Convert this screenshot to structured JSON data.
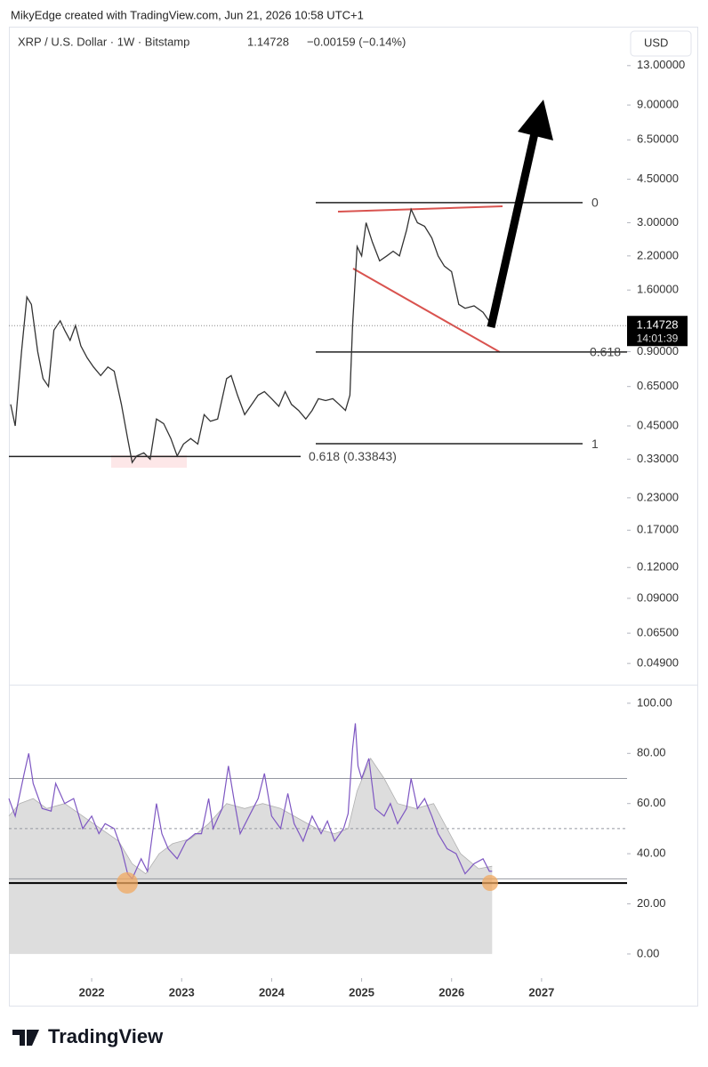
{
  "header": {
    "credit": "MikyEdge created with TradingView.com, Jun 21, 2026 10:58 UTC+1"
  },
  "footer": {
    "brand": "TradingView"
  },
  "chart_data": [
    {
      "type": "line",
      "title": "XRP / U.S. Dollar · 1W · Bitstamp",
      "last_price": 1.14728,
      "change": "−0.00159 (−0.14%)",
      "countdown": "14:01:39",
      "currency": "USD",
      "log_scale": true,
      "color": "#333333",
      "xlim": [
        2021.08,
        2027.95
      ],
      "ylim": [
        0.0402,
        18.7
      ],
      "yticks": [
        {
          "value": 13,
          "label": "13.00000"
        },
        {
          "value": 9,
          "label": "9.00000"
        },
        {
          "value": 6.5,
          "label": "6.50000"
        },
        {
          "value": 4.5,
          "label": "4.50000"
        },
        {
          "value": 3,
          "label": "3.00000"
        },
        {
          "value": 2.2,
          "label": "2.20000"
        },
        {
          "value": 1.6,
          "label": "1.60000"
        },
        {
          "value": 0.9,
          "label": "0.90000"
        },
        {
          "value": 0.65,
          "label": "0.65000"
        },
        {
          "value": 0.45,
          "label": "0.45000"
        },
        {
          "value": 0.33,
          "label": "0.33000"
        },
        {
          "value": 0.23,
          "label": "0.23000"
        },
        {
          "value": 0.17,
          "label": "0.17000"
        },
        {
          "value": 0.12,
          "label": "0.12000"
        },
        {
          "value": 0.09,
          "label": "0.09000"
        },
        {
          "value": 0.065,
          "label": "0.06500"
        },
        {
          "value": 0.049,
          "label": "0.04900"
        }
      ],
      "x": [
        2021.1,
        2021.15,
        2021.22,
        2021.28,
        2021.33,
        2021.4,
        2021.46,
        2021.52,
        2021.58,
        2021.65,
        2021.7,
        2021.76,
        2021.82,
        2021.88,
        2021.95,
        2022.02,
        2022.1,
        2022.18,
        2022.25,
        2022.33,
        2022.4,
        2022.45,
        2022.5,
        2022.58,
        2022.65,
        2022.72,
        2022.8,
        2022.88,
        2022.95,
        2023.02,
        2023.1,
        2023.18,
        2023.25,
        2023.32,
        2023.4,
        2023.5,
        2023.55,
        2023.62,
        2023.7,
        2023.78,
        2023.85,
        2023.92,
        2024.0,
        2024.08,
        2024.15,
        2024.22,
        2024.3,
        2024.38,
        2024.45,
        2024.52,
        2024.6,
        2024.68,
        2024.75,
        2024.82,
        2024.87,
        2024.9,
        2024.95,
        2025.0,
        2025.05,
        2025.12,
        2025.2,
        2025.28,
        2025.35,
        2025.42,
        2025.5,
        2025.55,
        2025.62,
        2025.7,
        2025.78,
        2025.85,
        2025.92,
        2026.0,
        2026.08,
        2026.15,
        2026.25,
        2026.35,
        2026.45
      ],
      "values": [
        0.55,
        0.45,
        0.9,
        1.5,
        1.4,
        0.9,
        0.7,
        0.65,
        1.1,
        1.2,
        1.1,
        1.0,
        1.15,
        0.95,
        0.85,
        0.78,
        0.72,
        0.78,
        0.75,
        0.55,
        0.4,
        0.32,
        0.34,
        0.35,
        0.33,
        0.48,
        0.46,
        0.4,
        0.34,
        0.38,
        0.4,
        0.38,
        0.5,
        0.47,
        0.48,
        0.7,
        0.72,
        0.6,
        0.5,
        0.55,
        0.6,
        0.62,
        0.58,
        0.54,
        0.62,
        0.55,
        0.52,
        0.48,
        0.52,
        0.58,
        0.57,
        0.58,
        0.55,
        0.52,
        0.6,
        1.15,
        2.4,
        2.2,
        3.0,
        2.5,
        2.1,
        2.2,
        2.3,
        2.2,
        2.8,
        3.4,
        3.0,
        2.9,
        2.6,
        2.2,
        2.0,
        1.9,
        1.4,
        1.35,
        1.38,
        1.3,
        1.15
      ],
      "levels": [
        {
          "value": 3.62,
          "label": "0"
        },
        {
          "value": 0.897,
          "label": "0.618"
        },
        {
          "value": 0.381,
          "label": "1"
        },
        {
          "value": 0.33843,
          "label": "0.618 (0.33843)"
        }
      ]
    },
    {
      "type": "line",
      "xlim": [
        2021.08,
        2027.95
      ],
      "ylim": [
        -9.6,
        106.7
      ],
      "xticks": [
        2022,
        2023,
        2024,
        2025,
        2026,
        2027
      ],
      "yticks": [
        {
          "value": 100,
          "label": "100.00"
        },
        {
          "value": 80,
          "label": "80.00"
        },
        {
          "value": 60,
          "label": "60.00"
        },
        {
          "value": 40,
          "label": "40.00"
        },
        {
          "value": 20,
          "label": "20.00"
        },
        {
          "value": 0,
          "label": "0.00"
        }
      ],
      "bands": [
        70,
        50,
        30
      ],
      "support_level": 28.3,
      "series": [
        {
          "color": "#d9d9d9",
          "x": [
            2021.08,
            2021.2,
            2021.35,
            2021.5,
            2021.7,
            2021.9,
            2022.1,
            2022.3,
            2022.45,
            2022.6,
            2022.75,
            2022.9,
            2023.1,
            2023.3,
            2023.5,
            2023.7,
            2023.9,
            2024.1,
            2024.3,
            2024.5,
            2024.7,
            2024.85,
            2024.95,
            2025.1,
            2025.25,
            2025.4,
            2025.6,
            2025.8,
            2025.95,
            2026.1,
            2026.3,
            2026.45
          ],
          "values": [
            55,
            60,
            62,
            58,
            60,
            55,
            50,
            45,
            36,
            32,
            40,
            44,
            46,
            52,
            60,
            58,
            60,
            58,
            54,
            50,
            48,
            50,
            65,
            78,
            70,
            60,
            58,
            60,
            50,
            40,
            34,
            35
          ]
        },
        {
          "color": "#7e57c2",
          "x": [
            2021.08,
            2021.15,
            2021.25,
            2021.3,
            2021.35,
            2021.45,
            2021.55,
            2021.6,
            2021.7,
            2021.8,
            2021.9,
            2022.0,
            2022.08,
            2022.15,
            2022.25,
            2022.33,
            2022.4,
            2022.45,
            2022.55,
            2022.62,
            2022.72,
            2022.78,
            2022.85,
            2022.95,
            2023.05,
            2023.15,
            2023.22,
            2023.3,
            2023.35,
            2023.45,
            2023.52,
            2023.58,
            2023.65,
            2023.75,
            2023.85,
            2023.92,
            2024.0,
            2024.1,
            2024.18,
            2024.25,
            2024.35,
            2024.45,
            2024.55,
            2024.62,
            2024.7,
            2024.8,
            2024.85,
            2024.9,
            2024.93,
            2024.96,
            2025.0,
            2025.08,
            2025.15,
            2025.25,
            2025.32,
            2025.4,
            2025.5,
            2025.55,
            2025.62,
            2025.7,
            2025.78,
            2025.85,
            2025.95,
            2026.05,
            2026.15,
            2026.25,
            2026.35,
            2026.42,
            2026.45
          ],
          "values": [
            62,
            55,
            72,
            80,
            68,
            58,
            57,
            68,
            60,
            62,
            50,
            55,
            48,
            52,
            50,
            42,
            32,
            30,
            38,
            33,
            60,
            48,
            42,
            38,
            45,
            48,
            48,
            62,
            50,
            58,
            75,
            62,
            48,
            55,
            62,
            72,
            55,
            50,
            64,
            52,
            45,
            55,
            48,
            53,
            45,
            50,
            56,
            82,
            92,
            75,
            70,
            78,
            58,
            55,
            60,
            52,
            58,
            70,
            58,
            62,
            55,
            48,
            42,
            40,
            32,
            36,
            38,
            33,
            33
          ]
        }
      ]
    }
  ]
}
